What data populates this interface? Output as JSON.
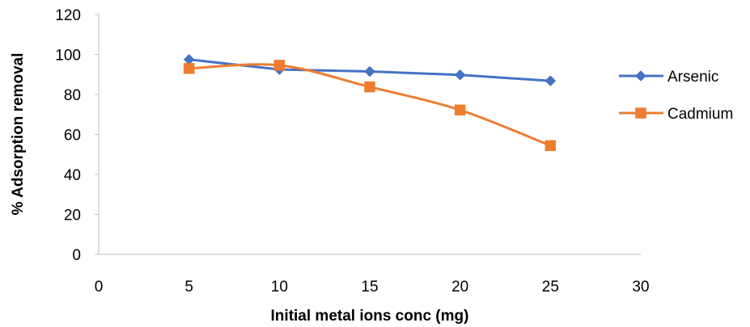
{
  "chart_data": {
    "type": "line",
    "title": "",
    "xlabel": "Initial metal ions conc (mg)",
    "ylabel": "% Adsorption removal",
    "xlim": [
      0,
      30
    ],
    "ylim": [
      0,
      120
    ],
    "x_ticks": [
      0,
      5,
      10,
      15,
      20,
      25,
      30
    ],
    "y_ticks": [
      0,
      20,
      40,
      60,
      80,
      100,
      120
    ],
    "grid": false,
    "legend_position": "right",
    "series": [
      {
        "name": "Arsenic",
        "color": "#4472C4",
        "marker": "diamond",
        "smooth": false,
        "x": [
          5,
          10,
          15,
          20,
          25
        ],
        "y": [
          97.5,
          92.5,
          91.5,
          89.8,
          86.8
        ]
      },
      {
        "name": "Cadmium",
        "color": "#ED7D31",
        "marker": "square",
        "smooth": true,
        "x": [
          5,
          10,
          15,
          20,
          25
        ],
        "y": [
          93,
          94.6,
          83.8,
          72.2,
          54.4
        ]
      }
    ]
  }
}
